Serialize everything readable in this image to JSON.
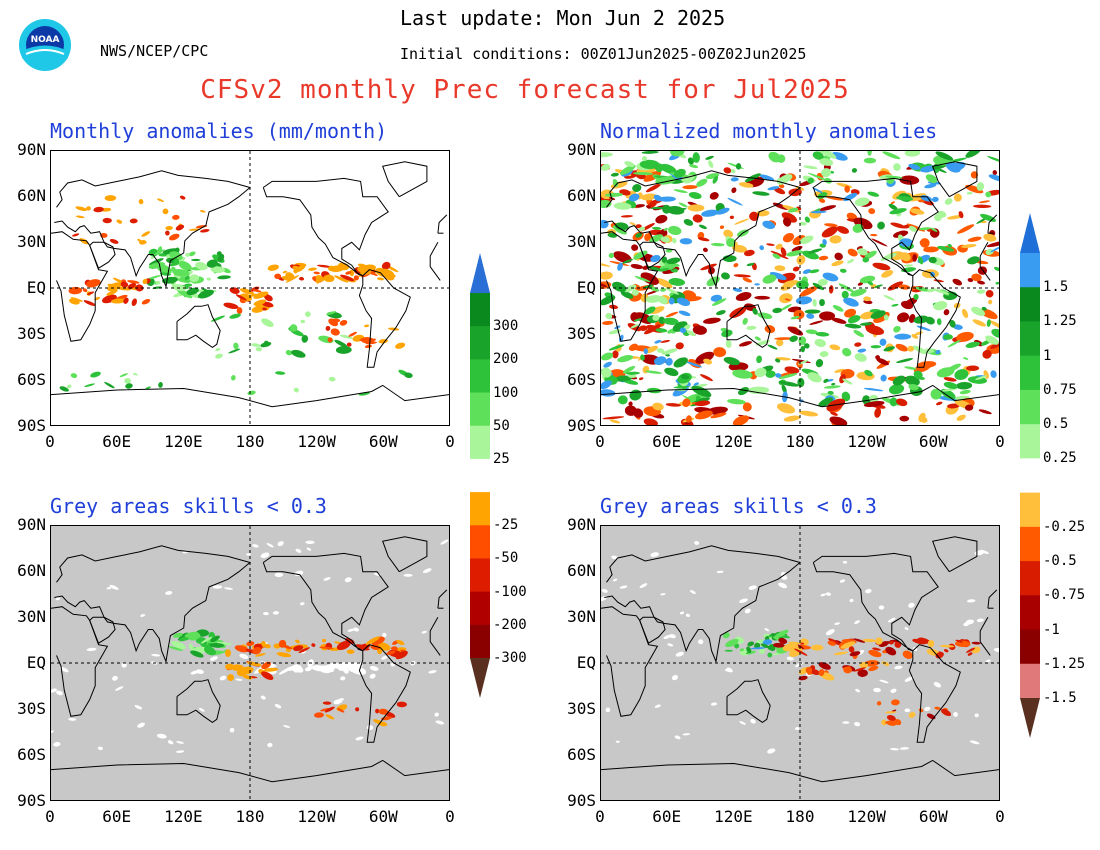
{
  "header": {
    "last_update": "Last update: Mon Jun  2 2025",
    "agency": "NWS/NCEP/CPC",
    "initial_conditions": "Initial conditions: 00Z01Jun2025-00Z02Jun2025",
    "title": "CFSv2 monthly Prec forecast for Jul2025",
    "logo_text": "NOAA"
  },
  "panels": {
    "top_left_title": "Monthly anomalies (mm/month)",
    "top_right_title": "Normalized monthly anomalies",
    "bottom_left_title": "Grey areas skills < 0.3",
    "bottom_right_title": "Grey areas skills < 0.3"
  },
  "axes": {
    "lat_labels": [
      "90N",
      "60N",
      "30N",
      "EQ",
      "30S",
      "60S",
      "90S"
    ],
    "lon_labels": [
      "0",
      "60E",
      "120E",
      "180",
      "120W",
      "60W",
      "0"
    ]
  },
  "colorbar_left": {
    "labels": [
      "300",
      "200",
      "100",
      "50",
      "25",
      "-25",
      "-50",
      "-100",
      "-200",
      "-300"
    ],
    "colors": [
      "#2a6fd6",
      "#0a8a1e",
      "#1aa32a",
      "#2ec23b",
      "#5fe05a",
      "#a8f59a",
      "#ffffff",
      "#ffa400",
      "#ff4e00",
      "#dd1c00",
      "#b00000",
      "#8a0000",
      "#5a3020"
    ]
  },
  "colorbar_right": {
    "labels": [
      "1.5",
      "1.25",
      "1",
      "0.75",
      "0.5",
      "0.25",
      "-0.25",
      "-0.5",
      "-0.75",
      "-1",
      "-1.25",
      "-1.5"
    ],
    "colors": [
      "#1f6fd8",
      "#3a9cf0",
      "#0a8a1e",
      "#1aa32a",
      "#2ec23b",
      "#5fe05a",
      "#a8f59a",
      "#ffffff",
      "#ffbf3a",
      "#ff5a00",
      "#d81c00",
      "#a80000",
      "#8a0000",
      "#e07a7a",
      "#5a3020"
    ]
  }
}
